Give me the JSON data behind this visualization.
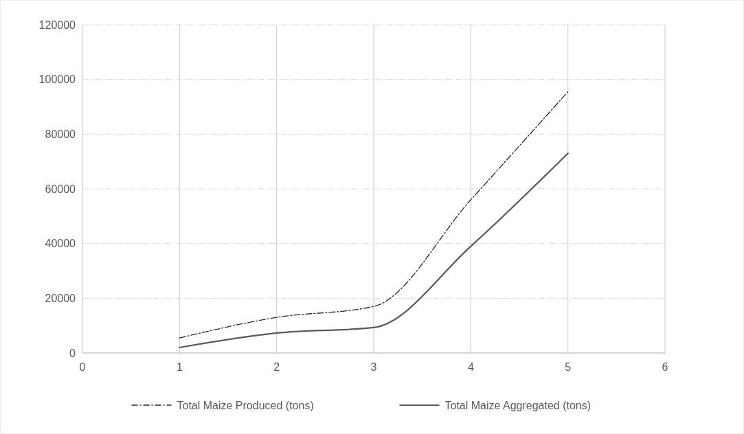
{
  "chart_data": {
    "type": "line",
    "x": [
      1,
      2,
      3,
      4,
      5
    ],
    "series": [
      {
        "name": "Total Maize Produced (tons)",
        "color": "#262626",
        "values": [
          5500,
          13000,
          17000,
          56000,
          95500
        ],
        "line_style": "dashed"
      },
      {
        "name": "Total Maize Aggregated (tons)",
        "color": "#595959",
        "values": [
          2000,
          7300,
          9300,
          39000,
          73000
        ],
        "line_style": "solid"
      }
    ],
    "xlim": [
      0,
      6
    ],
    "xticks": [
      0,
      1,
      2,
      3,
      4,
      5,
      6
    ],
    "ylim": [
      0,
      120000
    ],
    "yticks": [
      0,
      20000,
      40000,
      60000,
      80000,
      100000,
      120000
    ],
    "grid": true,
    "legend": "bottom",
    "marker": "none"
  }
}
